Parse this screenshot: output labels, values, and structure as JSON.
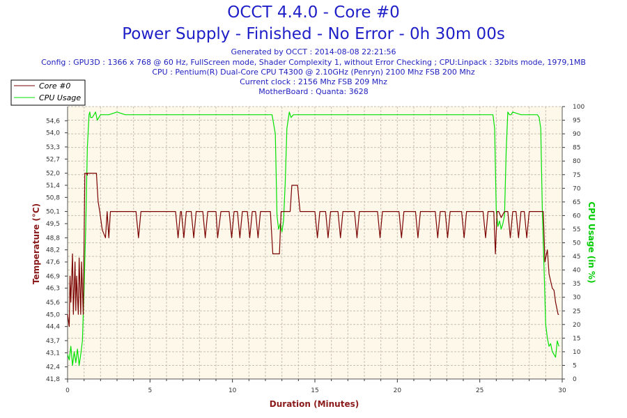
{
  "header": {
    "title": "OCCT 4.4.0 - Core #0",
    "subtitle": "Power Supply - Finished - No Error - 0h 30m 00s",
    "generated": "Generated by OCCT : 2014-08-08 22:21:56",
    "config": "Config : GPU3D : 1366 x 768 @ 60 Hz, FullScreen mode, Shader Complexity 1, without Error Checking ; CPU:Linpack : 32bits mode, 1979,1MB",
    "cpu": "CPU : Pentium(R) Dual-Core CPU T4300 @ 2.10GHz (Penryn) 2100 Mhz FSB 200 Mhz",
    "clock": "Current clock : 2156 Mhz FSB 209 Mhz",
    "motherboard": "MotherBoard : Quanta: 3628"
  },
  "colors": {
    "temperature": "#7a0000",
    "cpu_usage": "#00e000",
    "plot_bg": "#fdf8ea",
    "grid": "#c8c0b0",
    "y2_label": "#00cc00",
    "y1_label": "#8b1a1a"
  },
  "chart_data": {
    "type": "line",
    "xlabel": "Duration (Minutes)",
    "ylabel": "Temperature (°C)",
    "y2label": "CPU Usage (in %)",
    "xlim": [
      0,
      30
    ],
    "ylim": [
      41.8,
      55.3
    ],
    "y2lim": [
      0,
      100
    ],
    "x_ticks": [
      "0",
      "5",
      "10",
      "15",
      "20",
      "25",
      "30"
    ],
    "y_ticks": [
      "41,8",
      "42,4",
      "43,1",
      "43,7",
      "44,4",
      "45,0",
      "45,6",
      "46,3",
      "46,9",
      "47,6",
      "48,2",
      "48,8",
      "49,5",
      "50,1",
      "50,8",
      "51,4",
      "52,0",
      "52,7",
      "53,3",
      "54,0",
      "54,6"
    ],
    "y_tick_values": [
      41.8,
      42.4,
      43.1,
      43.7,
      44.4,
      45.0,
      45.6,
      46.3,
      46.9,
      47.6,
      48.2,
      48.8,
      49.5,
      50.1,
      50.8,
      51.4,
      52.0,
      52.7,
      53.3,
      54.0,
      54.6
    ],
    "y2_ticks": [
      "0",
      "5",
      "10",
      "15",
      "20",
      "25",
      "30",
      "35",
      "40",
      "45",
      "50",
      "55",
      "60",
      "65",
      "70",
      "75",
      "80",
      "85",
      "90",
      "95",
      "100"
    ],
    "grid": true,
    "legend": "top-left",
    "series": [
      {
        "name": "Core #0",
        "axis": "left",
        "x": [
          0,
          0.1,
          0.15,
          0.2,
          0.3,
          0.35,
          0.45,
          0.5,
          0.55,
          0.65,
          0.7,
          0.8,
          0.85,
          0.95,
          1.05,
          1.15,
          1.2,
          1.2,
          1.75,
          1.85,
          1.95,
          2.1,
          2.3,
          2.4,
          2.5,
          2.6,
          2.75,
          4.15,
          4.3,
          4.45,
          6.55,
          6.7,
          6.85,
          6.9,
          7.05,
          7.2,
          7.5,
          7.65,
          7.8,
          8.2,
          8.35,
          8.5,
          9.0,
          9.1,
          9.3,
          9.8,
          9.95,
          10.1,
          10.3,
          10.45,
          10.6,
          10.9,
          11.05,
          11.2,
          11.4,
          11.55,
          11.7,
          12.3,
          12.45,
          12.6,
          12.85,
          12.95,
          13.5,
          13.6,
          13.95,
          14.1,
          15.0,
          15.15,
          15.3,
          15.65,
          15.8,
          15.95,
          16.4,
          16.55,
          16.7,
          17.4,
          17.55,
          17.7,
          18.8,
          18.95,
          19.1,
          20.1,
          20.25,
          20.4,
          21.1,
          21.25,
          21.4,
          22.3,
          22.45,
          22.6,
          22.9,
          23.05,
          23.2,
          23.9,
          24.05,
          24.2,
          25.2,
          25.35,
          25.5,
          25.85,
          25.95,
          26.05,
          26.15,
          26.3,
          26.5,
          26.7,
          26.85,
          27.0,
          27.2,
          27.35,
          27.5,
          27.7,
          27.85,
          28.0,
          28.3,
          28.45,
          28.6,
          28.75,
          28.85,
          28.9,
          28.95,
          29.1,
          29.2,
          29.4,
          29.5,
          29.6,
          29.75,
          29.8
        ],
        "y": [
          45.0,
          44.4,
          46.9,
          45.6,
          48.0,
          45.0,
          47.6,
          45.2,
          46.9,
          45.0,
          47.8,
          45.0,
          47.6,
          45.0,
          52.0,
          52.0,
          51.9,
          52.0,
          52.0,
          50.6,
          50.1,
          49.2,
          48.8,
          50.1,
          48.8,
          50.1,
          50.1,
          50.1,
          48.8,
          50.1,
          50.1,
          48.8,
          50.1,
          50.1,
          48.8,
          50.1,
          50.1,
          48.8,
          50.1,
          50.1,
          48.8,
          50.1,
          50.1,
          48.8,
          50.1,
          50.1,
          48.8,
          50.1,
          50.1,
          48.8,
          50.1,
          50.1,
          48.8,
          50.1,
          50.1,
          48.8,
          50.1,
          50.1,
          48.0,
          48.0,
          48.0,
          50.1,
          50.1,
          51.4,
          51.4,
          50.1,
          50.1,
          48.8,
          50.1,
          50.1,
          48.8,
          50.1,
          50.1,
          48.8,
          50.1,
          50.1,
          48.8,
          50.1,
          50.1,
          48.8,
          50.1,
          50.1,
          48.8,
          50.1,
          50.1,
          48.8,
          50.1,
          50.1,
          48.8,
          50.1,
          50.1,
          48.8,
          50.1,
          50.1,
          48.8,
          50.1,
          50.1,
          48.8,
          50.1,
          50.1,
          48.0,
          50.1,
          50.1,
          49.8,
          50.1,
          50.1,
          48.8,
          50.1,
          50.1,
          48.8,
          50.1,
          50.1,
          48.8,
          50.1,
          50.1,
          50.1,
          50.1,
          50.1,
          50.1,
          48.9,
          47.6,
          48.2,
          47.0,
          46.3,
          46.2,
          45.6,
          45.0,
          45.0
        ]
      },
      {
        "name": "CPU Usage",
        "axis": "right",
        "x": [
          0,
          0.1,
          0.2,
          0.3,
          0.4,
          0.5,
          0.6,
          0.7,
          0.8,
          0.9,
          1.0,
          1.1,
          1.2,
          1.3,
          1.35,
          1.4,
          1.5,
          1.6,
          1.7,
          1.8,
          2.0,
          2.2,
          2.5,
          3.0,
          3.5,
          4.0,
          5.0,
          6.0,
          7.0,
          8.0,
          9.0,
          10.0,
          11.0,
          12.0,
          12.4,
          12.6,
          12.7,
          12.8,
          12.9,
          13.0,
          13.1,
          13.2,
          13.3,
          13.45,
          13.55,
          13.7,
          14.0,
          14.5,
          15.0,
          16.0,
          17.0,
          18.0,
          19.0,
          20.0,
          21.0,
          22.0,
          23.0,
          24.0,
          25.0,
          25.6,
          25.8,
          25.9,
          26.0,
          26.1,
          26.2,
          26.3,
          26.4,
          26.5,
          26.6,
          26.7,
          26.8,
          26.9,
          27.0,
          27.5,
          28.0,
          28.5,
          28.6,
          28.7,
          28.8,
          28.9,
          29.0,
          29.1,
          29.2,
          29.3,
          29.4,
          29.5,
          29.6,
          29.7,
          29.8
        ],
        "y": [
          9,
          7,
          12,
          5,
          10,
          6,
          11,
          5,
          9,
          14,
          33,
          55,
          85,
          97,
          98,
          96,
          96,
          97,
          98,
          95,
          97,
          97,
          97,
          98,
          97,
          97,
          97,
          97,
          97,
          97,
          97,
          97,
          97,
          97,
          97,
          90,
          60,
          55,
          57,
          54,
          58,
          72,
          92,
          98,
          96,
          97,
          97,
          97,
          97,
          97,
          97,
          97,
          97,
          97,
          97,
          97,
          97,
          97,
          97,
          97,
          97,
          92,
          62,
          56,
          58,
          55,
          57,
          60,
          83,
          98,
          97,
          97,
          98,
          97,
          97,
          97,
          96,
          92,
          60,
          40,
          20,
          15,
          12,
          13,
          10,
          9,
          8,
          14,
          12
        ]
      }
    ]
  }
}
